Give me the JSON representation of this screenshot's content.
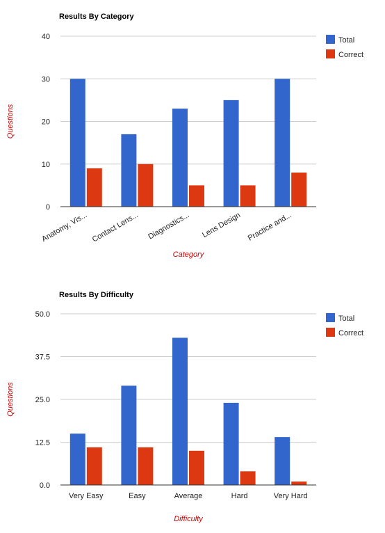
{
  "colors": {
    "total": "#3366cc",
    "correct": "#dc3912",
    "axis_title": "#cc0000",
    "grid": "#cccccc",
    "axis": "#333333",
    "text": "#222222"
  },
  "chart_data": [
    {
      "type": "bar",
      "title": "Results By Category",
      "xlabel": "Category",
      "ylabel": "Questions",
      "categories": [
        "Anatomy, Vis...",
        "Contact Lens...",
        "Diagnostics...",
        "Lens Design",
        "Practice and..."
      ],
      "series": [
        {
          "name": "Total",
          "values": [
            30,
            17,
            23,
            25,
            30
          ]
        },
        {
          "name": "Correct",
          "values": [
            9,
            10,
            5,
            5,
            8
          ]
        }
      ],
      "ylim": [
        0,
        40
      ],
      "yticks": [
        "0",
        "10",
        "20",
        "30",
        "40"
      ],
      "rotate_labels": true,
      "grid": true,
      "legend": "right"
    },
    {
      "type": "bar",
      "title": "Results By Difficulty",
      "xlabel": "Difficulty",
      "ylabel": "Questions",
      "categories": [
        "Very Easy",
        "Easy",
        "Average",
        "Hard",
        "Very Hard"
      ],
      "series": [
        {
          "name": "Total",
          "values": [
            15,
            29,
            43,
            24,
            14
          ]
        },
        {
          "name": "Correct",
          "values": [
            11,
            11,
            10,
            4,
            1
          ]
        }
      ],
      "ylim": [
        0,
        50
      ],
      "yticks": [
        "0.0",
        "12.5",
        "25.0",
        "37.5",
        "50.0"
      ],
      "rotate_labels": false,
      "grid": true,
      "legend": "right"
    }
  ]
}
